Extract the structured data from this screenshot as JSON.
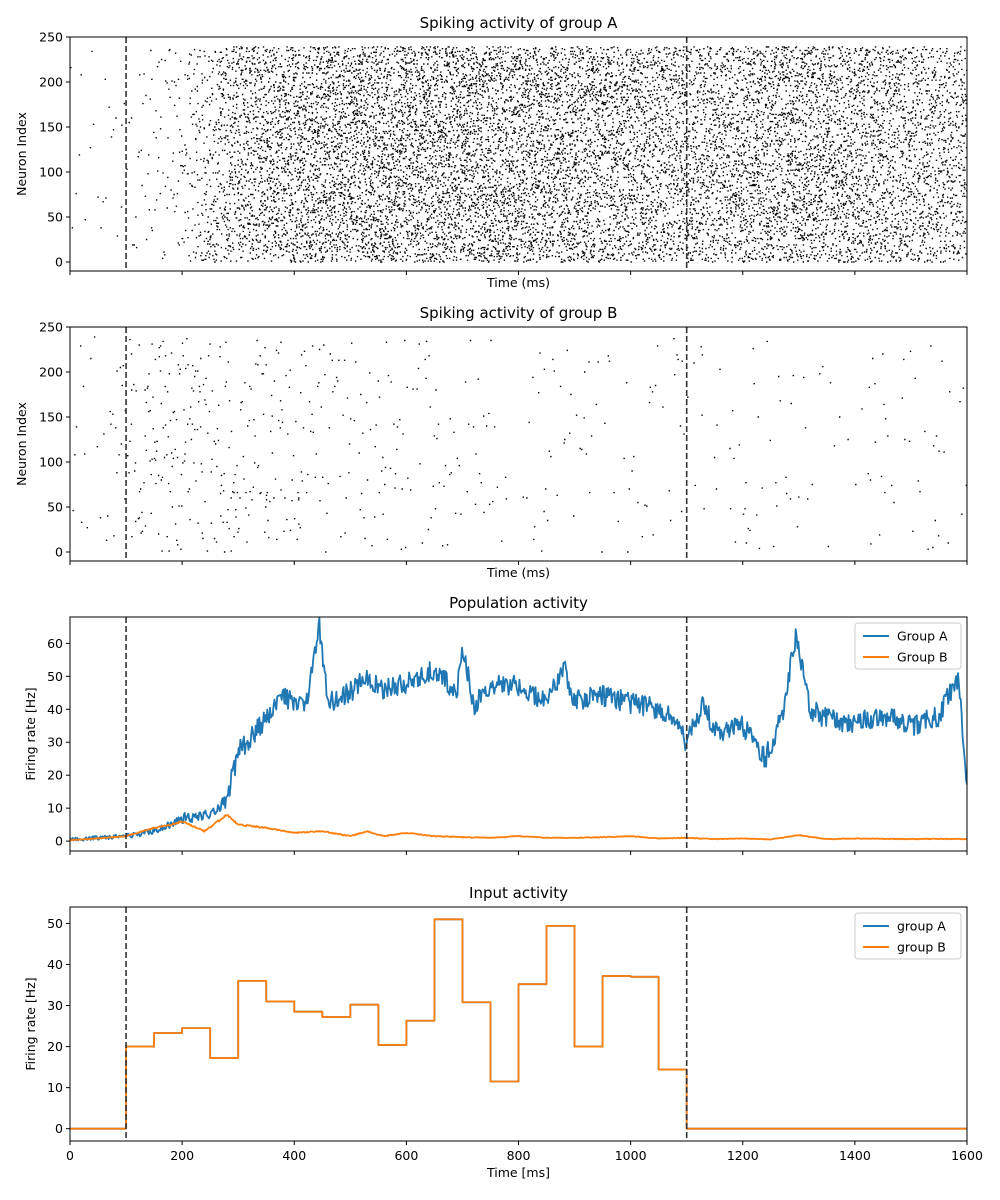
{
  "chart_data": [
    {
      "type": "scatter",
      "title": "Spiking activity of group A",
      "xlabel": "Time (ms)",
      "ylabel": "Neuron Index",
      "xlim": [
        0,
        1600
      ],
      "ylim": [
        -10,
        250
      ],
      "yticks": [
        0,
        50,
        100,
        150,
        200,
        250
      ],
      "xticks": [
        0,
        200,
        400,
        600,
        800,
        1000,
        1200,
        1400,
        1600
      ],
      "show_xtick_labels": false,
      "markers": [
        100,
        1100
      ],
      "neuron_count": 240,
      "rate_profile": [
        {
          "t": 0,
          "hz": 0.5
        },
        {
          "t": 100,
          "hz": 1.5
        },
        {
          "t": 150,
          "hz": 3
        },
        {
          "t": 200,
          "hz": 6
        },
        {
          "t": 250,
          "hz": 20
        },
        {
          "t": 300,
          "hz": 35
        },
        {
          "t": 350,
          "hz": 40
        },
        {
          "t": 450,
          "hz": 48
        },
        {
          "t": 700,
          "hz": 50
        },
        {
          "t": 1000,
          "hz": 42
        },
        {
          "t": 1100,
          "hz": 35
        },
        {
          "t": 1300,
          "hz": 45
        },
        {
          "t": 1600,
          "hz": 30
        }
      ]
    },
    {
      "type": "scatter",
      "title": "Spiking activity of group B",
      "xlabel": "Time (ms)",
      "ylabel": "Neuron Index",
      "xlim": [
        0,
        1600
      ],
      "ylim": [
        -10,
        250
      ],
      "yticks": [
        0,
        50,
        100,
        150,
        200,
        250
      ],
      "xticks": [
        0,
        200,
        400,
        600,
        800,
        1000,
        1200,
        1400,
        1600
      ],
      "show_xtick_labels": false,
      "markers": [
        100,
        1100
      ],
      "neuron_count": 240,
      "rate_profile": [
        {
          "t": 0,
          "hz": 0.5
        },
        {
          "t": 100,
          "hz": 2
        },
        {
          "t": 150,
          "hz": 4.5
        },
        {
          "t": 250,
          "hz": 4
        },
        {
          "t": 350,
          "hz": 3
        },
        {
          "t": 450,
          "hz": 2
        },
        {
          "t": 700,
          "hz": 1.2
        },
        {
          "t": 1100,
          "hz": 0.8
        },
        {
          "t": 1600,
          "hz": 0.8
        }
      ]
    },
    {
      "type": "line",
      "title": "Population activity",
      "xlabel": "",
      "ylabel": "Firing rate [Hz]",
      "xlim": [
        0,
        1600
      ],
      "ylim": [
        -3,
        68
      ],
      "yticks": [
        0,
        10,
        20,
        30,
        40,
        50,
        60
      ],
      "xticks": [
        0,
        200,
        400,
        600,
        800,
        1000,
        1200,
        1400,
        1600
      ],
      "show_xtick_labels": false,
      "markers": [
        100,
        1100
      ],
      "legend": "top-right",
      "series": [
        {
          "name": "Group A",
          "color": "#1f77b4",
          "x": [
            0,
            50,
            100,
            150,
            200,
            250,
            280,
            300,
            330,
            360,
            380,
            400,
            420,
            445,
            460,
            500,
            530,
            560,
            600,
            650,
            690,
            700,
            720,
            750,
            800,
            850,
            880,
            900,
            950,
            1000,
            1050,
            1080,
            1100,
            1130,
            1150,
            1200,
            1240,
            1270,
            1295,
            1320,
            1350,
            1400,
            1450,
            1500,
            1550,
            1585,
            1600
          ],
          "values": [
            0.5,
            1,
            1.5,
            3,
            7,
            8,
            13,
            27,
            33,
            40,
            44,
            42,
            40,
            65,
            42,
            45,
            50,
            46,
            48,
            52,
            45,
            60,
            41,
            48,
            47,
            42,
            53,
            43,
            44,
            42,
            40,
            36,
            30,
            42,
            33,
            35,
            25,
            38,
            63,
            40,
            37,
            36,
            38,
            35,
            38,
            50,
            18
          ]
        },
        {
          "name": "Group B",
          "color": "#ff7f0e",
          "x": [
            0,
            50,
            100,
            150,
            180,
            200,
            240,
            280,
            300,
            350,
            400,
            450,
            500,
            530,
            560,
            600,
            650,
            700,
            750,
            800,
            850,
            900,
            950,
            1000,
            1050,
            1100,
            1150,
            1200,
            1250,
            1300,
            1350,
            1400,
            1450,
            1500,
            1550,
            1600
          ],
          "values": [
            0.3,
            0.8,
            1.5,
            4,
            5,
            6,
            3,
            8,
            5,
            4,
            2.5,
            3,
            1.5,
            3,
            1.5,
            2.5,
            1.5,
            1.2,
            1,
            1.5,
            1,
            1,
            1.2,
            1.5,
            0.8,
            1,
            0.6,
            0.8,
            0.5,
            1.8,
            0.6,
            0.8,
            0.7,
            0.6,
            0.7,
            0.6
          ]
        }
      ]
    },
    {
      "type": "line",
      "title": "Input activity",
      "xlabel": "Time [ms]",
      "ylabel": "Firing rate [Hz]",
      "xlim": [
        0,
        1600
      ],
      "ylim": [
        -3,
        54
      ],
      "yticks": [
        0,
        10,
        20,
        30,
        40,
        50
      ],
      "xticks": [
        0,
        200,
        400,
        600,
        800,
        1000,
        1200,
        1400,
        1600
      ],
      "show_xtick_labels": true,
      "markers": [
        100,
        1100
      ],
      "legend": "top-right",
      "step": true,
      "series": [
        {
          "name": "group A",
          "color": "#1f77b4",
          "x": [
            0,
            100,
            150,
            200,
            250,
            300,
            350,
            400,
            450,
            500,
            550,
            600,
            650,
            700,
            750,
            800,
            850,
            900,
            950,
            1000,
            1050,
            1100,
            1600
          ],
          "values": [
            0,
            20,
            23.3,
            24.5,
            17.2,
            36,
            31,
            28.5,
            27.2,
            30.2,
            20.4,
            26.3,
            51,
            30.8,
            11.5,
            35.2,
            49.4,
            20,
            37.2,
            37,
            14.4,
            0,
            0
          ]
        },
        {
          "name": "group B",
          "color": "#ff7f0e",
          "x": [
            0,
            100,
            150,
            200,
            250,
            300,
            350,
            400,
            450,
            500,
            550,
            600,
            650,
            700,
            750,
            800,
            850,
            900,
            950,
            1000,
            1050,
            1100,
            1600
          ],
          "values": [
            0,
            20,
            23.3,
            24.5,
            17.2,
            36,
            31,
            28.5,
            27.2,
            30.2,
            20.4,
            26.3,
            51,
            30.8,
            11.5,
            35.2,
            49.4,
            20,
            37.2,
            37,
            14.4,
            0,
            0
          ]
        }
      ]
    }
  ]
}
